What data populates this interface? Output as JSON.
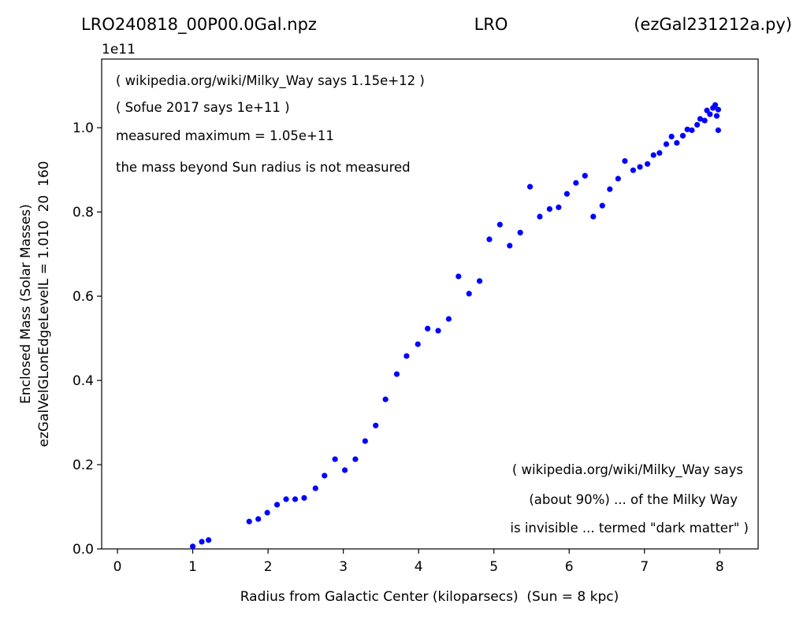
{
  "chart_data": {
    "type": "scatter",
    "title": [
      "LRO240818_00P00.0Gal.npz",
      "LRO",
      "(ezGal231212a.py)"
    ],
    "xlabel": "Radius from Galactic Center (kiloparsecs)  (Sun = 8 kpc)",
    "ylabel": [
      "Enclosed Mass (Solar Masses)",
      "ezGalVelGLonEdgeLevelL = 1.010  20  160"
    ],
    "y_offset_label": "1e11",
    "annotations_top": [
      "( wikipedia.org/wiki/Milky_Way says 1.15e+12 )",
      "( Sofue 2017 says 1e+11 )",
      "measured maximum = 1.05e+11",
      "the mass beyond Sun radius is not measured"
    ],
    "annotations_bottom": [
      "( wikipedia.org/wiki/Milky_Way says",
      "(about 90%) ... of the Milky Way",
      "is invisible ... termed \"dark matter\" )"
    ],
    "xlim": [
      -0.21,
      8.51
    ],
    "ylim": [
      0,
      1.163
    ],
    "xticks": [
      0,
      1,
      2,
      3,
      4,
      5,
      6,
      7,
      8
    ],
    "yticks": [
      {
        "value": 0,
        "label": "0.0"
      },
      0.2,
      0.4,
      0.6,
      0.8,
      {
        "value": 1,
        "label": "1.0"
      }
    ],
    "color": "#0000ff",
    "x": [
      1.0,
      1.12,
      1.21,
      1.75,
      1.87,
      1.99,
      2.12,
      2.24,
      2.36,
      2.48,
      2.63,
      2.75,
      2.89,
      3.02,
      3.16,
      3.29,
      3.43,
      3.56,
      3.71,
      3.84,
      3.99,
      4.12,
      4.26,
      4.4,
      4.53,
      4.67,
      4.81,
      4.94,
      5.08,
      5.21,
      5.35,
      5.48,
      5.61,
      5.74,
      5.86,
      5.97,
      6.09,
      6.21,
      6.32,
      6.44,
      6.54,
      6.65,
      6.74,
      6.85,
      6.94,
      7.04,
      7.12,
      7.2,
      7.29,
      7.36,
      7.43,
      7.51,
      7.57,
      7.63,
      7.7,
      7.74,
      7.8,
      7.83,
      7.87,
      7.91,
      7.94,
      7.96,
      7.98,
      7.98
    ],
    "values": [
      0.006,
      0.017,
      0.021,
      0.065,
      0.071,
      0.086,
      0.105,
      0.118,
      0.118,
      0.121,
      0.144,
      0.174,
      0.213,
      0.187,
      0.213,
      0.256,
      0.293,
      0.355,
      0.415,
      0.458,
      0.486,
      0.523,
      0.518,
      0.546,
      0.647,
      0.606,
      0.636,
      0.735,
      0.77,
      0.72,
      0.751,
      0.86,
      0.789,
      0.807,
      0.811,
      0.843,
      0.869,
      0.886,
      0.789,
      0.815,
      0.854,
      0.879,
      0.921,
      0.899,
      0.907,
      0.914,
      0.935,
      0.94,
      0.961,
      0.979,
      0.964,
      0.981,
      0.996,
      0.994,
      1.007,
      1.021,
      1.017,
      1.041,
      1.032,
      1.047,
      1.054,
      1.028,
      1.043,
      0.994
    ]
  }
}
